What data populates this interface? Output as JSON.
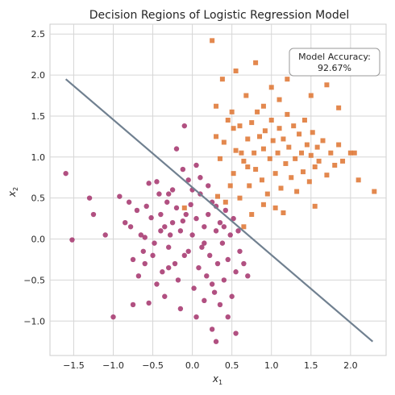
{
  "chart_data": {
    "type": "scatter",
    "title": "Decision Regions of Logistic Regression Model",
    "xlabel": "x",
    "xlabel_sub": "1",
    "ylabel": "x",
    "ylabel_sub": "2",
    "xlim": [
      -1.8,
      2.45
    ],
    "ylim": [
      -1.42,
      2.62
    ],
    "xticks": [
      -1.5,
      -1.0,
      -0.5,
      0.0,
      0.5,
      1.0,
      1.5,
      2.0
    ],
    "xtick_labels": [
      "−1.5",
      "−1.0",
      "−0.5",
      "0.0",
      "0.5",
      "1.0",
      "1.5",
      "2.0"
    ],
    "yticks": [
      -1.0,
      -0.5,
      0.0,
      0.5,
      1.0,
      1.5,
      2.0,
      2.5
    ],
    "ytick_labels": [
      "−1.0",
      "−0.5",
      "0.0",
      "0.5",
      "1.0",
      "1.5",
      "2.0",
      "2.5"
    ],
    "grid": true,
    "annotation": {
      "line1": "Model Accuracy:",
      "line2": "92.67%",
      "placement": "top-right"
    },
    "decision_boundary": {
      "x": [
        -1.6,
        2.28
      ],
      "y": [
        1.95,
        -1.25
      ],
      "color": "#708090"
    },
    "series": [
      {
        "marker": "circle",
        "color": "#a93d73",
        "points": [
          [
            -1.6,
            0.8
          ],
          [
            -1.52,
            -0.01
          ],
          [
            -1.3,
            0.5
          ],
          [
            -1.25,
            0.3
          ],
          [
            -1.1,
            0.05
          ],
          [
            -1.0,
            -0.95
          ],
          [
            -0.92,
            0.52
          ],
          [
            -0.8,
            0.45
          ],
          [
            -0.78,
            0.15
          ],
          [
            -0.75,
            -0.8
          ],
          [
            -0.7,
            0.35
          ],
          [
            -0.65,
            0.05
          ],
          [
            -0.6,
            0.02
          ],
          [
            -0.58,
            0.4
          ],
          [
            -0.55,
            0.68
          ],
          [
            -0.52,
            0.26
          ],
          [
            -0.5,
            -0.2
          ],
          [
            -0.48,
            -0.05
          ],
          [
            -0.45,
            -0.55
          ],
          [
            -0.42,
            0.55
          ],
          [
            -0.4,
            0.3
          ],
          [
            -0.38,
            -0.4
          ],
          [
            -0.35,
            0.15
          ],
          [
            -0.32,
            0.45
          ],
          [
            -0.3,
            -0.1
          ],
          [
            -0.28,
            0.05
          ],
          [
            -0.25,
            0.2
          ],
          [
            -0.22,
            -0.3
          ],
          [
            -0.2,
            0.38
          ],
          [
            -0.18,
            -0.5
          ],
          [
            -0.15,
            0.1
          ],
          [
            -0.12,
            0.22
          ],
          [
            -0.1,
            -0.2
          ],
          [
            -0.08,
            0.3
          ],
          [
            -0.05,
            -0.15
          ],
          [
            -0.02,
            0.42
          ],
          [
            0.0,
            0.05
          ],
          [
            0.02,
            -0.6
          ],
          [
            0.05,
            0.25
          ],
          [
            0.08,
            -0.35
          ],
          [
            0.1,
            0.55
          ],
          [
            0.12,
            -0.1
          ],
          [
            0.15,
            0.15
          ],
          [
            0.18,
            -0.45
          ],
          [
            0.2,
            0.3
          ],
          [
            0.22,
            -0.2
          ],
          [
            0.25,
            0.45
          ],
          [
            0.28,
            -0.65
          ],
          [
            0.3,
            0.1
          ],
          [
            0.32,
            -0.3
          ],
          [
            0.35,
            0.2
          ],
          [
            0.38,
            -0.05
          ],
          [
            0.4,
            -0.5
          ],
          [
            0.42,
            0.35
          ],
          [
            0.45,
            -0.25
          ],
          [
            0.48,
            0.05
          ],
          [
            0.5,
            -0.7
          ],
          [
            0.52,
            0.25
          ],
          [
            0.55,
            -0.4
          ],
          [
            0.58,
            0.1
          ],
          [
            0.6,
            -0.15
          ],
          [
            0.65,
            -0.3
          ],
          [
            -0.85,
            0.2
          ],
          [
            -0.75,
            -0.25
          ],
          [
            -0.68,
            -0.45
          ],
          [
            -0.62,
            -0.15
          ],
          [
            -0.55,
            -0.78
          ],
          [
            -0.45,
            0.7
          ],
          [
            -0.35,
            -0.7
          ],
          [
            -0.25,
            0.6
          ],
          [
            -0.15,
            -0.85
          ],
          [
            -0.05,
            0.72
          ],
          [
            0.05,
            -0.95
          ],
          [
            0.15,
            -0.75
          ],
          [
            0.25,
            -1.1
          ],
          [
            0.3,
            -1.25
          ],
          [
            0.55,
            -1.15
          ],
          [
            0.45,
            -0.95
          ],
          [
            0.35,
            -0.8
          ],
          [
            -0.1,
            1.38
          ],
          [
            -0.2,
            1.1
          ],
          [
            0.05,
            0.9
          ],
          [
            -0.3,
            0.55
          ],
          [
            0.1,
            0.75
          ],
          [
            0.2,
            0.65
          ],
          [
            0.0,
            0.6
          ],
          [
            -0.12,
            0.85
          ],
          [
            0.3,
            0.4
          ],
          [
            0.4,
            0.15
          ],
          [
            0.15,
            -0.05
          ],
          [
            -0.4,
            0.1
          ],
          [
            -0.6,
            -0.3
          ],
          [
            -0.3,
            -0.35
          ],
          [
            0.25,
            -0.55
          ],
          [
            0.7,
            -0.45
          ]
        ]
      },
      {
        "marker": "square",
        "color": "#e07b3b",
        "points": [
          [
            0.25,
            2.42
          ],
          [
            0.38,
            1.95
          ],
          [
            0.55,
            2.05
          ],
          [
            0.8,
            2.15
          ],
          [
            1.0,
            1.85
          ],
          [
            1.2,
            1.95
          ],
          [
            1.28,
            2.25
          ],
          [
            1.6,
            2.2
          ],
          [
            1.7,
            1.88
          ],
          [
            1.5,
            1.75
          ],
          [
            1.85,
            1.6
          ],
          [
            2.05,
            1.05
          ],
          [
            2.1,
            0.72
          ],
          [
            2.3,
            0.58
          ],
          [
            1.55,
            0.4
          ],
          [
            0.3,
            1.62
          ],
          [
            0.45,
            1.45
          ],
          [
            0.3,
            1.25
          ],
          [
            0.35,
            0.98
          ],
          [
            0.4,
            1.18
          ],
          [
            0.52,
            0.8
          ],
          [
            0.55,
            1.08
          ],
          [
            0.6,
            1.38
          ],
          [
            0.65,
            0.95
          ],
          [
            0.7,
            1.22
          ],
          [
            0.72,
            0.65
          ],
          [
            0.75,
            1.42
          ],
          [
            0.78,
            1.05
          ],
          [
            0.8,
            0.85
          ],
          [
            0.82,
            1.55
          ],
          [
            0.85,
            1.25
          ],
          [
            0.88,
            0.72
          ],
          [
            0.9,
            1.1
          ],
          [
            0.92,
            1.32
          ],
          [
            0.95,
            0.55
          ],
          [
            0.98,
            0.98
          ],
          [
            1.0,
            1.45
          ],
          [
            1.02,
            1.2
          ],
          [
            1.05,
            0.8
          ],
          [
            1.08,
            1.05
          ],
          [
            1.1,
            1.35
          ],
          [
            1.12,
            0.62
          ],
          [
            1.15,
            1.22
          ],
          [
            1.18,
            0.92
          ],
          [
            1.2,
            1.52
          ],
          [
            1.22,
            1.12
          ],
          [
            1.25,
            0.75
          ],
          [
            1.28,
            1.38
          ],
          [
            1.3,
            0.98
          ],
          [
            1.32,
            0.58
          ],
          [
            1.35,
            1.28
          ],
          [
            1.38,
            1.05
          ],
          [
            1.4,
            0.82
          ],
          [
            1.42,
            1.45
          ],
          [
            1.45,
            1.15
          ],
          [
            1.48,
            0.7
          ],
          [
            1.5,
            1.02
          ],
          [
            1.52,
            1.3
          ],
          [
            1.55,
            0.88
          ],
          [
            1.58,
            1.12
          ],
          [
            1.6,
            0.95
          ],
          [
            1.65,
            1.2
          ],
          [
            1.7,
            0.78
          ],
          [
            1.75,
            1.05
          ],
          [
            1.8,
            0.9
          ],
          [
            1.85,
            1.15
          ],
          [
            1.9,
            0.95
          ],
          [
            2.0,
            1.05
          ],
          [
            0.9,
            1.62
          ],
          [
            1.1,
            1.7
          ],
          [
            0.68,
            1.75
          ],
          [
            0.5,
            1.55
          ],
          [
            0.6,
            0.5
          ],
          [
            0.75,
            0.3
          ],
          [
            0.65,
            0.15
          ],
          [
            0.9,
            0.42
          ],
          [
            1.05,
            0.38
          ],
          [
            1.15,
            0.32
          ],
          [
            0.48,
            0.65
          ],
          [
            0.42,
            0.45
          ],
          [
            0.32,
            0.52
          ],
          [
            -0.1,
            0.38
          ],
          [
            0.52,
            1.35
          ],
          [
            0.62,
            1.05
          ],
          [
            0.7,
            0.88
          ]
        ]
      }
    ]
  }
}
